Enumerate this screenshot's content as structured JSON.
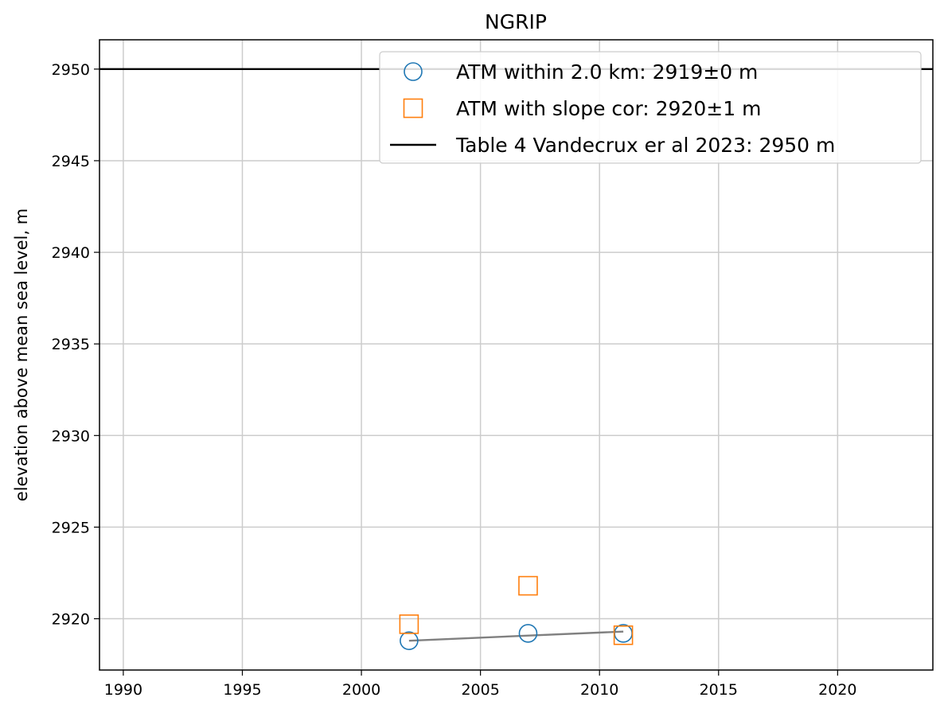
{
  "chart_data": {
    "type": "scatter",
    "title": "NGRIP",
    "xlabel": "",
    "ylabel": "elevation above mean sea level, m",
    "xlim": [
      1989,
      2024
    ],
    "ylim": [
      2917.2,
      2951.6
    ],
    "xticks": [
      1990,
      1995,
      2000,
      2005,
      2010,
      2015,
      2020
    ],
    "yticks": [
      2920,
      2925,
      2930,
      2935,
      2940,
      2945,
      2950
    ],
    "grid": true,
    "legend_position": "top-right",
    "series": [
      {
        "name": "ATM within 2.0 km: 2919±0 m",
        "marker": "circle",
        "color": "#1f77b4",
        "x": [
          2002,
          2007,
          2011
        ],
        "y": [
          2918.8,
          2919.2,
          2919.2
        ]
      },
      {
        "name": "ATM with slope cor: 2920±1 m",
        "marker": "square",
        "color": "#ff7f0e",
        "x": [
          2002,
          2007,
          2011
        ],
        "y": [
          2919.7,
          2921.8,
          2919.1
        ]
      },
      {
        "name": "Table 4 Vandecrux er al 2023: 2950 m",
        "marker": "hline",
        "color": "#000000",
        "y": 2950
      }
    ],
    "trend_line": {
      "color": "#808080",
      "x": [
        2002,
        2011
      ],
      "y": [
        2918.8,
        2919.3
      ]
    }
  }
}
